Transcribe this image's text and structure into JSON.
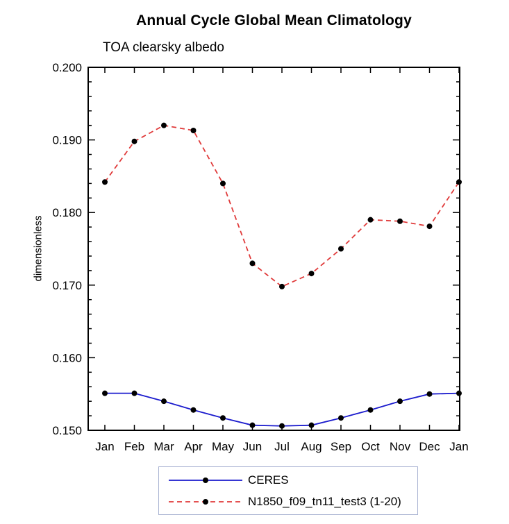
{
  "chart_data": {
    "type": "line",
    "title": "Annual Cycle Global Mean Climatology",
    "subtitle": "TOA clearsky albedo",
    "xlabel": "",
    "ylabel": "dimensionless",
    "ylim": [
      0.15,
      0.2
    ],
    "yticks": [
      0.15,
      0.16,
      0.17,
      0.18,
      0.19,
      0.2
    ],
    "ytick_decimals": 3,
    "y_minor_step": 0.002,
    "grid": false,
    "legend_position": "bottom",
    "categories": [
      "Jan",
      "Feb",
      "Mar",
      "Apr",
      "May",
      "Jun",
      "Jul",
      "Aug",
      "Sep",
      "Oct",
      "Nov",
      "Dec",
      "Jan"
    ],
    "series": [
      {
        "name": "CERES",
        "color": "#1a1acd",
        "style": "solid",
        "marker": "circle",
        "marker_color": "#000000",
        "values": [
          0.1551,
          0.1551,
          0.154,
          0.1528,
          0.1517,
          0.1507,
          0.1506,
          0.1507,
          0.1517,
          0.1528,
          0.154,
          0.155,
          0.1551
        ]
      },
      {
        "name": "N1850_f09_tn11_test3 (1-20)",
        "color": "#e03a3a",
        "style": "dashed",
        "marker": "circle",
        "marker_color": "#000000",
        "values": [
          0.1842,
          0.1898,
          0.192,
          0.1913,
          0.184,
          0.173,
          0.1698,
          0.1716,
          0.175,
          0.179,
          0.1788,
          0.1781,
          0.1842
        ]
      }
    ]
  }
}
